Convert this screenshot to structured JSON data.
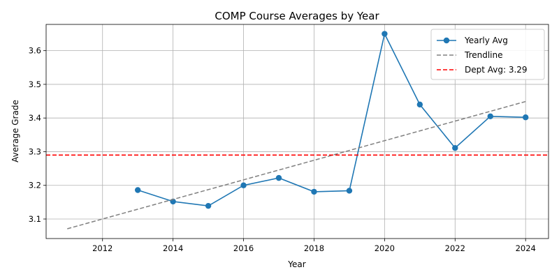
{
  "chart_data": {
    "type": "line",
    "title": "COMP Course Averages by Year",
    "xlabel": "Year",
    "ylabel": "Average Grade",
    "xlim": [
      2010.4,
      2024.65
    ],
    "ylim": [
      3.042,
      3.678
    ],
    "x_ticks": [
      2012,
      2014,
      2016,
      2018,
      2020,
      2022,
      2024
    ],
    "y_ticks": [
      3.1,
      3.2,
      3.3,
      3.4,
      3.5,
      3.6
    ],
    "grid": true,
    "legend_position": "top-right",
    "series": [
      {
        "name": "Yearly Avg",
        "style": "solid-markers",
        "color": "#1f77b4",
        "x": [
          2013,
          2014,
          2015,
          2016,
          2017,
          2018,
          2019,
          2020,
          2021,
          2022,
          2023,
          2024
        ],
        "values": [
          3.186,
          3.152,
          3.139,
          3.2,
          3.222,
          3.181,
          3.184,
          3.65,
          3.44,
          3.311,
          3.405,
          3.402
        ]
      },
      {
        "name": "Trendline",
        "style": "dashed",
        "color": "#808080",
        "x": [
          2011,
          2024
        ],
        "values": [
          3.071,
          3.449
        ]
      },
      {
        "name": "Dept Avg: 3.29",
        "style": "dashed-hline",
        "color": "#ff0000",
        "y": 3.29
      }
    ]
  }
}
